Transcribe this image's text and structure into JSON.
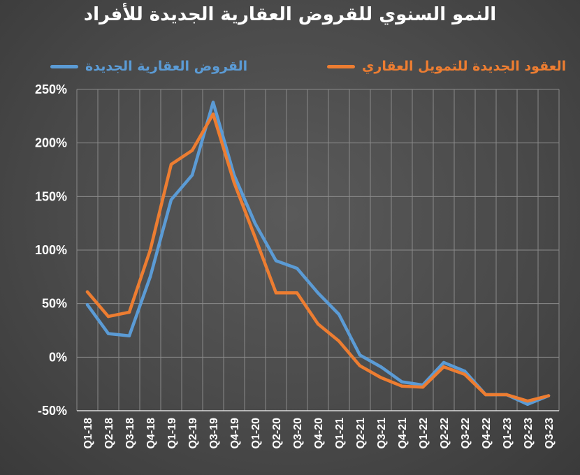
{
  "chart_data": {
    "type": "line",
    "title": "النمو السنوي للقروض العقارية الجديدة للأفراد",
    "xlabel": "",
    "ylabel": "",
    "categories": [
      "Q1-18",
      "Q2-18",
      "Q3-18",
      "Q4-18",
      "Q1-19",
      "Q2-19",
      "Q3-19",
      "Q4-19",
      "Q1-20",
      "Q2-20",
      "Q3-20",
      "Q4-20",
      "Q1-21",
      "Q2-21",
      "Q3-21",
      "Q4-21",
      "Q1-22",
      "Q2-22",
      "Q3-22",
      "Q4-22",
      "Q1-23",
      "Q2-23",
      "Q3-23"
    ],
    "ylim": [
      -50,
      250
    ],
    "yticks": [
      -50,
      0,
      50,
      100,
      150,
      200,
      250
    ],
    "ytick_labels": [
      "-50%",
      "0%",
      "50%",
      "100%",
      "150%",
      "200%",
      "250%"
    ],
    "grid": {
      "x": true,
      "y": true
    },
    "legend_position": "top",
    "series": [
      {
        "name": "القروض العقارية الجديدة",
        "color": "#5b9bd5",
        "values": [
          49,
          22,
          20,
          75,
          147,
          170,
          238,
          170,
          125,
          90,
          83,
          60,
          40,
          2,
          -9,
          -23,
          -26,
          -5,
          -13,
          -35,
          -35,
          -44,
          -36
        ]
      },
      {
        "name": "العقود الجديدة للتمويل العقاري",
        "color": "#ed7d31",
        "values": [
          61,
          38,
          42,
          100,
          180,
          193,
          227,
          163,
          112,
          60,
          60,
          31,
          15,
          -8,
          -19,
          -27,
          -28,
          -9,
          -16,
          -35,
          -35,
          -41,
          -36
        ]
      }
    ]
  },
  "colors": {
    "grid": "#8a8a8a",
    "axis": "#d9d9d9",
    "text": "#ffffff"
  }
}
